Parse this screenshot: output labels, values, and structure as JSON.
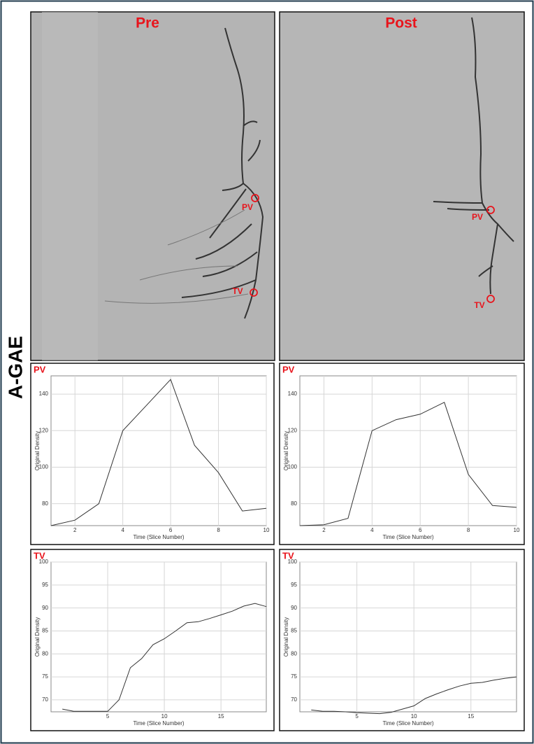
{
  "row_label": "A-GAE",
  "panels": [
    {
      "title": "Pre",
      "markers": [
        "PV",
        "TV"
      ]
    },
    {
      "title": "Post",
      "markers": [
        "PV",
        "TV"
      ]
    }
  ],
  "chart_data": [
    {
      "type": "line",
      "title": "PV",
      "xlabel": "Time (Slice Number)",
      "ylabel": "Original Density",
      "x": [
        1,
        2,
        3,
        4,
        5,
        6,
        7,
        8,
        9,
        10
      ],
      "values": [
        68,
        71,
        80,
        120,
        134,
        148,
        112,
        97,
        76,
        77.5
      ],
      "color": "#333333",
      "xlim": [
        1,
        10
      ],
      "ylim": [
        68,
        150
      ],
      "xticks": [
        2,
        4,
        6,
        8,
        10
      ],
      "yticks": [
        80,
        100,
        120,
        140
      ],
      "grid": true
    },
    {
      "type": "line",
      "title": "PV",
      "xlabel": "Time (Slice Number)",
      "ylabel": "Original Density",
      "x": [
        1,
        2,
        3,
        4,
        5,
        6,
        7,
        8,
        9,
        10
      ],
      "values": [
        68,
        68.5,
        72,
        120,
        126,
        129,
        135.5,
        96,
        79,
        78
      ],
      "color": "#333333",
      "xlim": [
        1,
        10
      ],
      "ylim": [
        68,
        150
      ],
      "xticks": [
        2,
        4,
        6,
        8,
        10
      ],
      "yticks": [
        80,
        100,
        120,
        140
      ],
      "grid": true
    },
    {
      "type": "line",
      "title": "TV",
      "xlabel": "Time (Slice Number)",
      "ylabel": "Original Density",
      "x": [
        1,
        2,
        3,
        4,
        5,
        6,
        7,
        8,
        9,
        10,
        11,
        12,
        13,
        14,
        15,
        16,
        17,
        18,
        19
      ],
      "values": [
        68,
        67.5,
        67.5,
        67.5,
        67.5,
        70,
        77,
        79,
        82,
        83.3,
        85,
        86.8,
        87,
        87.7,
        88.5,
        89.3,
        90.4,
        91,
        90.3
      ],
      "color": "#333333",
      "xlim": [
        0,
        19
      ],
      "ylim": [
        67.4,
        100
      ],
      "xticks": [
        5,
        10,
        15
      ],
      "yticks": [
        70,
        75,
        80,
        85,
        90,
        95,
        100
      ],
      "grid": true
    },
    {
      "type": "line",
      "title": "TV",
      "xlabel": "Time (Slice Number)",
      "ylabel": "Original Density",
      "x": [
        1,
        2,
        3,
        4,
        5,
        6,
        7,
        8,
        9,
        10,
        11,
        12,
        13,
        14,
        15,
        16,
        17,
        18,
        19
      ],
      "values": [
        67.8,
        67.5,
        67.5,
        67.4,
        67.2,
        67.1,
        67,
        67.3,
        68,
        68.7,
        70.3,
        71.3,
        72.2,
        73,
        73.6,
        73.8,
        74.3,
        74.7,
        75
      ],
      "color": "#333333",
      "xlim": [
        0,
        19
      ],
      "ylim": [
        67.4,
        100
      ],
      "xticks": [
        5,
        10,
        15
      ],
      "yticks": [
        70,
        75,
        80,
        85,
        90,
        95,
        100
      ],
      "grid": true
    }
  ]
}
